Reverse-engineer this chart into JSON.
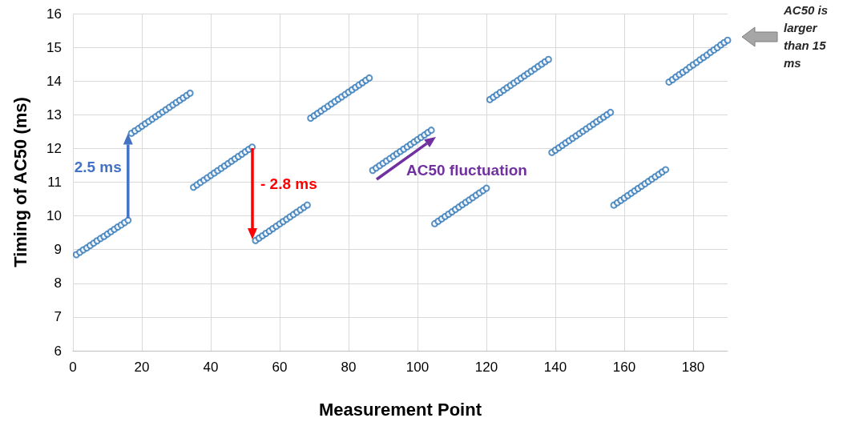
{
  "chart_data": {
    "type": "scatter",
    "xlabel": "Measurement Point",
    "ylabel": "Timing of AC50 (ms)",
    "x": [
      1,
      2,
      3,
      4,
      5,
      6,
      7,
      8,
      9,
      10,
      11,
      12,
      13,
      14,
      15,
      16,
      17,
      18,
      19,
      20,
      21,
      22,
      23,
      24,
      25,
      26,
      27,
      28,
      29,
      30,
      31,
      32,
      33,
      34,
      35,
      36,
      37,
      38,
      39,
      40,
      41,
      42,
      43,
      44,
      45,
      46,
      47,
      48,
      49,
      50,
      51,
      52,
      53,
      54,
      55,
      56,
      57,
      58,
      59,
      60,
      61,
      62,
      63,
      64,
      65,
      66,
      67,
      68,
      69,
      70,
      71,
      72,
      73,
      74,
      75,
      76,
      77,
      78,
      79,
      80,
      81,
      82,
      83,
      84,
      85,
      86,
      87,
      88,
      89,
      90,
      91,
      92,
      93,
      94,
      95,
      96,
      97,
      98,
      99,
      100,
      101,
      102,
      103,
      104,
      105,
      106,
      107,
      108,
      109,
      110,
      111,
      112,
      113,
      114,
      115,
      116,
      117,
      118,
      119,
      120,
      121,
      122,
      123,
      124,
      125,
      126,
      127,
      128,
      129,
      130,
      131,
      132,
      133,
      134,
      135,
      136,
      137,
      138,
      139,
      140,
      141,
      142,
      143,
      144,
      145,
      146,
      147,
      148,
      149,
      150,
      151,
      152,
      153,
      154,
      155,
      156,
      157,
      158,
      159,
      160,
      161,
      162,
      163,
      164,
      165,
      166,
      167,
      168,
      169,
      170,
      171,
      172,
      173,
      174,
      175,
      176,
      177,
      178,
      179,
      180,
      181,
      182,
      183,
      184,
      185,
      186,
      187,
      188,
      189,
      190
    ],
    "series": [
      {
        "color": "#2e75b6",
        "values": [
          8.85,
          8.92,
          8.99,
          9.05,
          9.12,
          9.19,
          9.26,
          9.33,
          9.39,
          9.46,
          9.53,
          9.6,
          9.67,
          9.73,
          9.8,
          9.87,
          12.45,
          12.52,
          12.59,
          12.66,
          12.73,
          12.8,
          12.87,
          12.94,
          13.01,
          13.08,
          13.15,
          13.22,
          13.29,
          13.36,
          13.43,
          13.5,
          13.57,
          13.64,
          10.85,
          10.92,
          10.99,
          11.06,
          11.13,
          11.2,
          11.27,
          11.34,
          11.41,
          11.48,
          11.55,
          11.62,
          11.69,
          11.76,
          11.83,
          11.9,
          11.97,
          12.04,
          9.27,
          9.34,
          9.41,
          9.48,
          9.55,
          9.62,
          9.69,
          9.76,
          9.83,
          9.9,
          9.97,
          10.04,
          10.11,
          10.18,
          10.25,
          10.32,
          12.9,
          12.97,
          13.04,
          13.11,
          13.18,
          13.25,
          13.32,
          13.39,
          13.46,
          13.53,
          13.6,
          13.67,
          13.74,
          13.81,
          13.88,
          13.95,
          14.02,
          14.09,
          11.35,
          11.42,
          11.49,
          11.56,
          11.63,
          11.7,
          11.77,
          11.84,
          11.91,
          11.98,
          12.05,
          12.12,
          12.19,
          12.26,
          12.33,
          12.4,
          12.47,
          12.54,
          9.77,
          9.84,
          9.91,
          9.98,
          10.05,
          10.12,
          10.19,
          10.26,
          10.33,
          10.4,
          10.47,
          10.54,
          10.61,
          10.68,
          10.75,
          10.82,
          13.45,
          13.52,
          13.59,
          13.66,
          13.73,
          13.8,
          13.87,
          13.94,
          14.01,
          14.08,
          14.15,
          14.22,
          14.29,
          14.36,
          14.43,
          14.5,
          14.57,
          14.64,
          11.88,
          11.95,
          12.02,
          12.09,
          12.16,
          12.23,
          12.3,
          12.37,
          12.44,
          12.51,
          12.58,
          12.65,
          12.72,
          12.79,
          12.86,
          12.93,
          13.0,
          13.07,
          10.32,
          10.39,
          10.46,
          10.53,
          10.6,
          10.67,
          10.74,
          10.81,
          10.88,
          10.95,
          11.02,
          11.09,
          11.16,
          11.23,
          11.3,
          11.37,
          13.97,
          14.04,
          14.12,
          14.19,
          14.26,
          14.33,
          14.41,
          14.48,
          14.55,
          14.63,
          14.7,
          14.77,
          14.85,
          14.92,
          14.99,
          15.07,
          15.14,
          15.21
        ]
      }
    ],
    "xlim": [
      0,
      190
    ],
    "xticks": [
      0,
      20,
      40,
      60,
      80,
      100,
      120,
      140,
      160,
      180
    ],
    "ylim": [
      6,
      16
    ],
    "yticks": [
      6,
      7,
      8,
      9,
      10,
      11,
      12,
      13,
      14,
      15,
      16
    ],
    "grid": true,
    "marker": "circle",
    "annotations": [
      {
        "text": "2.5 ms",
        "x": 16,
        "y": 12.45
      },
      "- 2.8 ms",
      "AC50 fluctuation",
      "AC50 is larger than 15 ms"
    ]
  }
}
